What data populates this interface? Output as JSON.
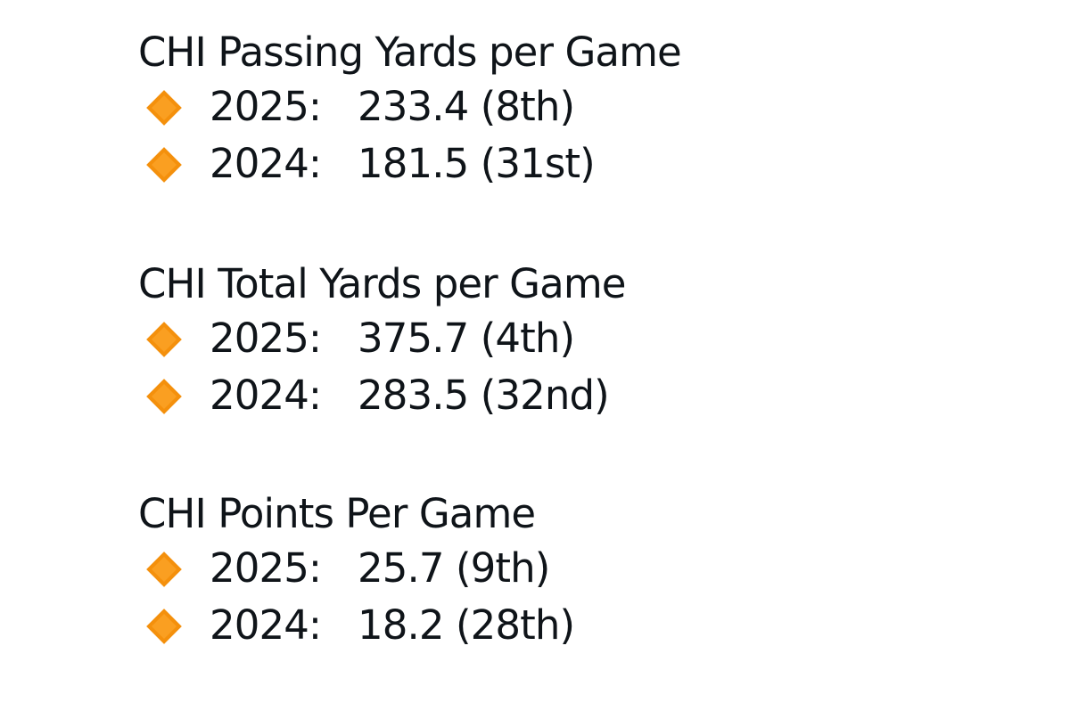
{
  "colors": {
    "diamond_fill": "#F4900C",
    "diamond_highlight": "#FFAC33",
    "text": "#0f1419",
    "background": "#ffffff"
  },
  "sections": [
    {
      "title": "CHI Passing Yards per Game",
      "rows": [
        {
          "icon": "orange-diamond-icon",
          "year": "2025:",
          "value": "233.4 (8th)"
        },
        {
          "icon": "orange-diamond-icon",
          "year": "2024:",
          "value": "181.5 (31st)"
        }
      ]
    },
    {
      "title": "CHI Total Yards per Game",
      "rows": [
        {
          "icon": "orange-diamond-icon",
          "year": "2025:",
          "value": "375.7 (4th)"
        },
        {
          "icon": "orange-diamond-icon",
          "year": "2024:",
          "value": "283.5 (32nd)"
        }
      ]
    },
    {
      "title": "CHI Points Per Game",
      "rows": [
        {
          "icon": "orange-diamond-icon",
          "year": "2025:",
          "value": "25.7 (9th)"
        },
        {
          "icon": "orange-diamond-icon",
          "year": "2024:",
          "value": "18.2 (28th)"
        }
      ]
    }
  ]
}
